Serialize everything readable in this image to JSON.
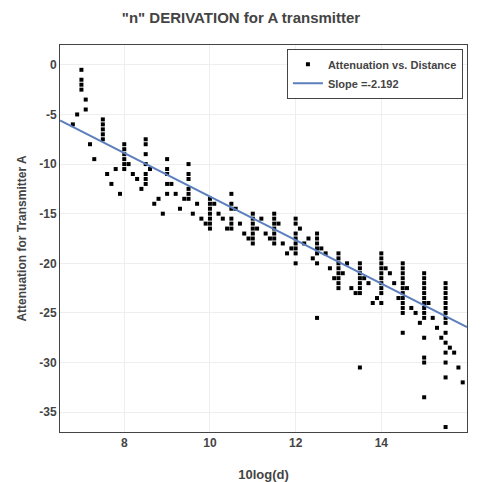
{
  "chart_data": {
    "type": "scatter",
    "title": "\"n\" DERIVATION for A transmitter",
    "xlabel": "10log(d)",
    "ylabel": "Attenuation for Transmitter A",
    "xlim": [
      6.5,
      16.0
    ],
    "ylim": [
      -37,
      2
    ],
    "xticks": [
      8,
      10,
      12,
      14
    ],
    "yticks": [
      0,
      -5,
      -10,
      -15,
      -20,
      -25,
      -30,
      -35
    ],
    "grid": true,
    "legend": "upper right",
    "series": [
      {
        "name": "Attenuation vs. Distance",
        "type": "scatter",
        "marker": "square",
        "color": "#000000",
        "x": [
          7.0,
          7.0,
          7.0,
          7.0,
          7.1,
          7.1,
          7.5,
          7.5,
          7.5,
          7.5,
          7.5,
          8.0,
          8.0,
          8.0,
          8.0,
          8.0,
          8.0,
          8.5,
          8.5,
          8.5,
          8.5,
          8.5,
          8.5,
          8.5,
          9.0,
          9.0,
          9.0,
          9.0,
          9.0,
          9.5,
          9.5,
          9.5,
          9.5,
          9.5,
          9.5,
          10.0,
          10.0,
          10.0,
          10.0,
          10.0,
          10.0,
          10.0,
          10.5,
          10.5,
          10.5,
          10.5,
          10.5,
          10.5,
          11.0,
          11.0,
          11.0,
          11.0,
          11.0,
          11.0,
          11.0,
          11.5,
          11.5,
          11.5,
          11.5,
          11.5,
          11.5,
          11.5,
          12.0,
          12.0,
          12.0,
          12.0,
          12.0,
          12.0,
          12.0,
          12.0,
          12.5,
          12.5,
          12.5,
          12.5,
          12.5,
          12.5,
          12.5,
          13.0,
          13.0,
          13.0,
          13.0,
          13.0,
          13.0,
          13.0,
          13.0,
          13.5,
          13.5,
          13.5,
          13.5,
          13.5,
          13.5,
          13.5,
          13.5,
          14.0,
          14.0,
          14.0,
          14.0,
          14.0,
          14.0,
          14.0,
          14.0,
          14.0,
          14.0,
          14.5,
          14.5,
          14.5,
          14.5,
          14.5,
          14.5,
          14.5,
          14.5,
          14.5,
          14.5,
          14.5,
          14.5,
          15.0,
          15.0,
          15.0,
          15.0,
          15.0,
          15.0,
          15.0,
          15.0,
          15.0,
          15.0,
          15.0,
          15.0,
          15.0,
          15.0,
          15.5,
          15.5,
          15.5,
          15.5,
          15.5,
          15.5,
          15.5,
          15.5,
          15.5,
          15.5,
          15.5,
          15.5,
          15.5,
          15.5,
          15.5,
          6.8,
          6.9,
          7.2,
          7.3,
          7.6,
          7.7,
          7.8,
          7.9,
          8.1,
          8.2,
          8.3,
          8.4,
          8.6,
          8.7,
          8.8,
          8.9,
          9.1,
          9.2,
          9.3,
          9.4,
          9.6,
          9.7,
          9.8,
          9.9,
          10.1,
          10.2,
          10.3,
          10.4,
          10.6,
          10.7,
          10.8,
          10.9,
          11.1,
          11.2,
          11.3,
          11.4,
          11.6,
          11.7,
          11.8,
          11.9,
          12.1,
          12.2,
          12.3,
          12.4,
          12.6,
          12.7,
          12.8,
          12.9,
          13.1,
          13.2,
          13.3,
          13.4,
          13.6,
          13.7,
          13.8,
          13.9,
          14.1,
          14.2,
          14.3,
          14.4,
          14.6,
          14.7,
          14.8,
          14.9,
          15.1,
          15.2,
          15.3,
          15.4,
          15.6,
          15.7,
          15.8,
          15.9
        ],
        "values": [
          -0.5,
          -1.5,
          -2.0,
          -2.5,
          -3.5,
          -4.5,
          -5.5,
          -6.0,
          -6.5,
          -7.0,
          -7.5,
          -8.0,
          -8.5,
          -9.0,
          -9.5,
          -10.0,
          -10.5,
          -7.5,
          -8.0,
          -9.0,
          -10.0,
          -11.0,
          -11.5,
          -12.0,
          -9.5,
          -10.5,
          -11.0,
          -12.0,
          -13.0,
          -10.0,
          -11.0,
          -11.5,
          -12.5,
          -13.0,
          -13.5,
          -13.5,
          -14.0,
          -14.5,
          -15.0,
          -15.5,
          -16.0,
          -16.5,
          -13.0,
          -14.0,
          -14.5,
          -15.5,
          -16.0,
          -16.5,
          -15.0,
          -15.5,
          -16.0,
          -16.5,
          -17.0,
          -17.5,
          -18.0,
          -15.0,
          -15.5,
          -16.0,
          -16.5,
          -17.0,
          -17.5,
          -18.0,
          -15.5,
          -16.0,
          -17.0,
          -17.5,
          -18.0,
          -18.5,
          -19.0,
          -20.0,
          -17.0,
          -17.5,
          -18.0,
          -18.5,
          -19.0,
          -20.0,
          -25.5,
          -19.0,
          -19.5,
          -20.0,
          -20.5,
          -21.0,
          -21.5,
          -22.0,
          -22.5,
          -20.0,
          -20.5,
          -21.0,
          -21.5,
          -22.0,
          -22.5,
          -23.0,
          -30.5,
          -19.0,
          -19.5,
          -20.0,
          -20.5,
          -21.0,
          -21.5,
          -22.0,
          -22.5,
          -23.0,
          -24.0,
          -20.0,
          -20.5,
          -21.0,
          -21.5,
          -22.0,
          -22.5,
          -23.0,
          -23.5,
          -24.0,
          -24.5,
          -25.0,
          -27.0,
          -21.0,
          -21.5,
          -22.0,
          -22.5,
          -23.0,
          -23.5,
          -24.0,
          -24.5,
          -25.0,
          -25.5,
          -27.5,
          -29.5,
          -30.0,
          -33.5,
          -22.0,
          -22.5,
          -23.0,
          -23.5,
          -24.0,
          -24.5,
          -25.0,
          -25.5,
          -26.0,
          -27.0,
          -28.0,
          -29.0,
          -30.0,
          -31.5,
          -36.5,
          -6.0,
          -5.0,
          -8.0,
          -9.5,
          -11.0,
          -12.0,
          -10.5,
          -13.0,
          -10.0,
          -11.0,
          -11.5,
          -12.5,
          -10.5,
          -14.0,
          -13.5,
          -15.0,
          -12.0,
          -13.0,
          -14.5,
          -13.5,
          -15.0,
          -14.0,
          -15.5,
          -16.0,
          -14.0,
          -15.0,
          -15.5,
          -16.5,
          -14.5,
          -16.0,
          -17.0,
          -17.5,
          -16.5,
          -15.5,
          -17.0,
          -17.5,
          -16.0,
          -18.0,
          -19.0,
          -18.5,
          -16.5,
          -18.0,
          -17.5,
          -19.5,
          -18.5,
          -19.0,
          -20.5,
          -21.5,
          -21.0,
          -20.0,
          -22.5,
          -23.0,
          -21.5,
          -22.0,
          -24.0,
          -23.5,
          -20.5,
          -21.0,
          -22.0,
          -23.5,
          -22.5,
          -24.5,
          -25.0,
          -26.0,
          -24.0,
          -25.5,
          -26.5,
          -27.5,
          -28.5,
          -29.0,
          -30.5,
          -32.0
        ]
      },
      {
        "name": "Slope =-2.192",
        "type": "line",
        "color": "#5b7fbd",
        "x": [
          6.5,
          16.0
        ],
        "values": [
          -5.598,
          -26.422
        ]
      }
    ]
  }
}
